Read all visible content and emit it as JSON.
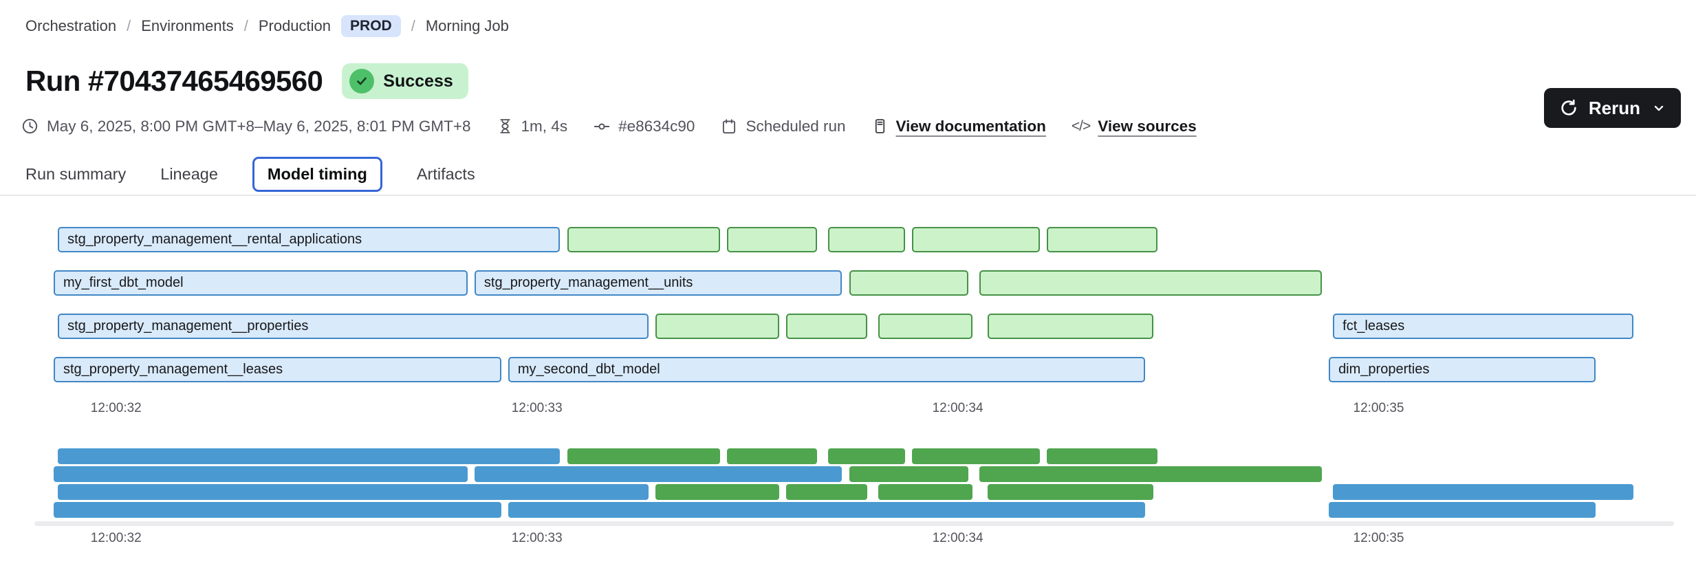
{
  "breadcrumb": {
    "separator": "/",
    "items": [
      {
        "label": "Orchestration"
      },
      {
        "label": "Environments"
      },
      {
        "label": "Production",
        "badge": "PROD"
      },
      {
        "label": "Morning Job"
      }
    ]
  },
  "header": {
    "title": "Run #70437465469560",
    "status": "Success"
  },
  "toolbar": {
    "rerun_label": "Rerun"
  },
  "meta": {
    "time_range": "May 6, 2025, 8:00 PM GMT+8–May 6, 2025, 8:01 PM GMT+8",
    "duration": "1m, 4s",
    "commit": "#e8634c90",
    "trigger": "Scheduled run",
    "docs_link": "View documentation",
    "sources_link": "View sources",
    "code_glyph": "</>"
  },
  "tabs": {
    "items": [
      {
        "label": "Run summary",
        "active": false
      },
      {
        "label": "Lineage",
        "active": false
      },
      {
        "label": "Model timing",
        "active": true
      },
      {
        "label": "Artifacts",
        "active": false
      }
    ]
  },
  "chart_data": {
    "type": "gantt",
    "title": "Model timing",
    "x_axis": {
      "unit": "time of day (h:mm:ss)",
      "xmin": 31.85,
      "xmax": 35.63
    },
    "ticks": [
      {
        "t": 32,
        "label": "12:00:32"
      },
      {
        "t": 33,
        "label": "12:00:33"
      },
      {
        "t": 34,
        "label": "12:00:34"
      },
      {
        "t": 35,
        "label": "12:00:35"
      }
    ],
    "colors": {
      "bar_blue_fill": "#d9eafa",
      "bar_blue_border": "#4187c6",
      "bar_green_fill": "#ccf2ca",
      "bar_green_border": "#459245",
      "minimap_blue": "#4a9ad1",
      "minimap_green": "#4fa64f"
    },
    "rows": [
      [
        {
          "name": "stg_property_management__rental_applications",
          "color": "blue",
          "start": 31.86,
          "end": 33.06
        },
        {
          "name": "",
          "color": "green",
          "start": 33.07,
          "end": 33.44
        },
        {
          "name": "",
          "color": "green",
          "start": 33.45,
          "end": 33.67
        },
        {
          "name": "",
          "color": "green",
          "start": 33.69,
          "end": 33.88
        },
        {
          "name": "",
          "color": "green",
          "start": 33.89,
          "end": 34.2
        },
        {
          "name": "",
          "color": "green",
          "start": 34.21,
          "end": 34.48
        }
      ],
      [
        {
          "name": "my_first_dbt_model",
          "color": "blue",
          "start": 31.85,
          "end": 32.84
        },
        {
          "name": "stg_property_management__units",
          "color": "blue",
          "start": 32.85,
          "end": 33.73
        },
        {
          "name": "",
          "color": "green",
          "start": 33.74,
          "end": 34.03
        },
        {
          "name": "",
          "color": "green",
          "start": 34.05,
          "end": 34.87
        }
      ],
      [
        {
          "name": "stg_property_management__properties",
          "color": "blue",
          "start": 31.86,
          "end": 33.27
        },
        {
          "name": "",
          "color": "green",
          "start": 33.28,
          "end": 33.58
        },
        {
          "name": "",
          "color": "green",
          "start": 33.59,
          "end": 33.79
        },
        {
          "name": "",
          "color": "green",
          "start": 33.81,
          "end": 34.04
        },
        {
          "name": "",
          "color": "green",
          "start": 34.07,
          "end": 34.47
        },
        {
          "name": "fct_leases",
          "color": "blue",
          "start": 34.89,
          "end": 35.61
        }
      ],
      [
        {
          "name": "stg_property_management__leases",
          "color": "blue",
          "start": 31.85,
          "end": 32.92
        },
        {
          "name": "my_second_dbt_model",
          "color": "blue",
          "start": 32.93,
          "end": 34.45
        },
        {
          "name": "dim_properties",
          "color": "blue",
          "start": 34.88,
          "end": 35.52
        }
      ]
    ]
  }
}
